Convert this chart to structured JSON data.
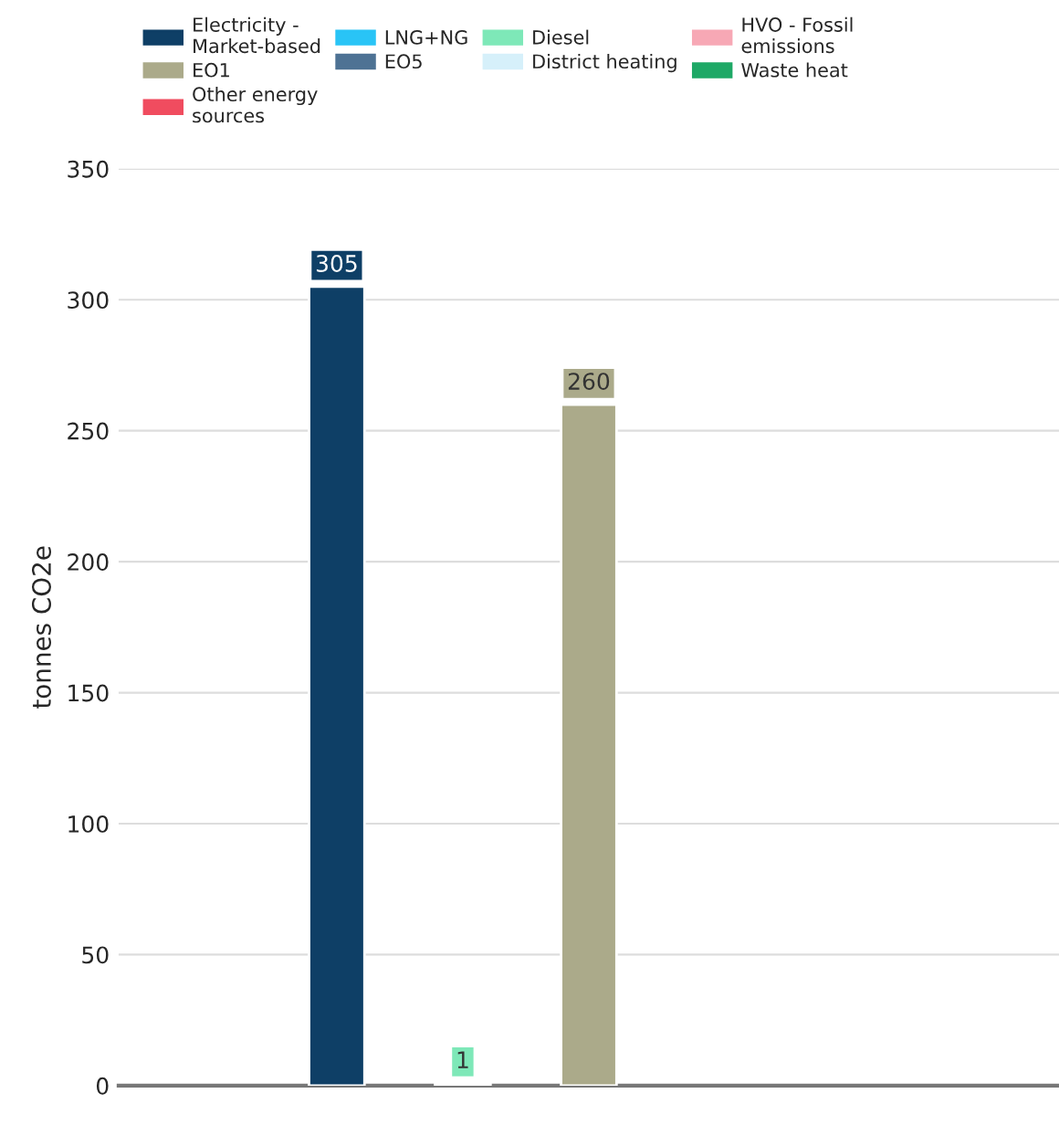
{
  "chart_data": {
    "type": "bar",
    "ylabel": "tonnes CO2e",
    "categories": [
      null
    ],
    "series": [
      {
        "name": "Electricity - Market-based",
        "color": "#0e3f66",
        "values": [
          305
        ]
      },
      {
        "name": "LNG+NG",
        "color": "#29c4f6",
        "values": [
          null
        ]
      },
      {
        "name": "Diesel",
        "color": "#7ee8b8",
        "values": [
          1
        ]
      },
      {
        "name": "HVO - Fossil emissions",
        "color": "#f7a8b5",
        "values": [
          null
        ]
      },
      {
        "name": "EO1",
        "color": "#abaa8a",
        "values": [
          260
        ]
      },
      {
        "name": "EO5",
        "color": "#4e7294",
        "values": [
          null
        ]
      },
      {
        "name": "District heating",
        "color": "#d6f0fa",
        "values": [
          null
        ]
      },
      {
        "name": "Waste heat",
        "color": "#1ea866",
        "values": [
          null
        ]
      },
      {
        "name": "Other energy sources",
        "color": "#f04c5f",
        "values": [
          null
        ]
      }
    ],
    "ylim": [
      0,
      350
    ],
    "yticks": [
      0,
      50,
      100,
      150,
      200,
      250,
      300,
      350
    ],
    "grid": "y",
    "legend": "top",
    "data_labels": true
  }
}
